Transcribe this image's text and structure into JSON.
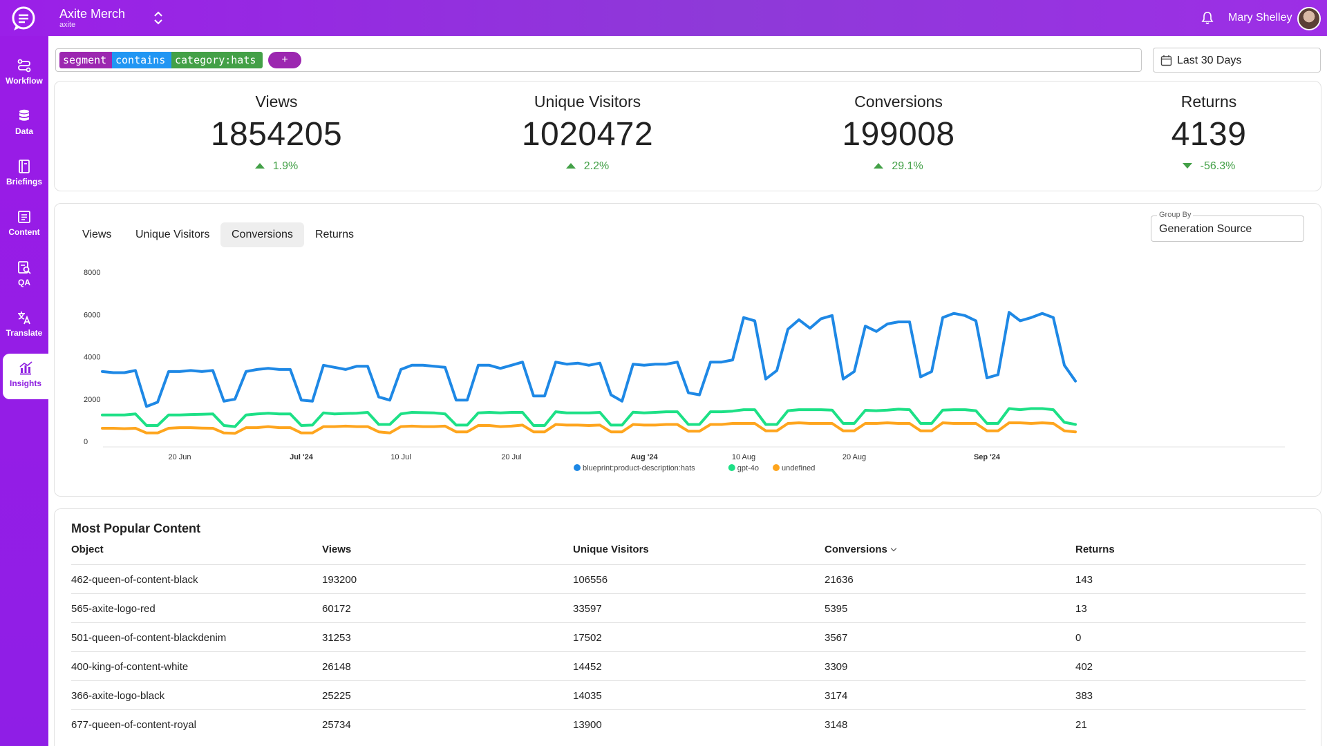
{
  "header": {
    "org_name": "Axite Merch",
    "org_sub": "axite",
    "user_name": "Mary Shelley"
  },
  "sidebar": {
    "items": [
      {
        "label": "Workflow",
        "icon": "workflow-icon"
      },
      {
        "label": "Data",
        "icon": "database-icon"
      },
      {
        "label": "Briefings",
        "icon": "briefings-icon"
      },
      {
        "label": "Content",
        "icon": "content-icon"
      },
      {
        "label": "QA",
        "icon": "qa-icon"
      },
      {
        "label": "Translate",
        "icon": "translate-icon"
      },
      {
        "label": "Insights",
        "icon": "insights-icon",
        "active": true
      }
    ]
  },
  "filter": {
    "tokens": [
      "segment",
      "contains",
      "category:hats"
    ],
    "add_label": "+",
    "date_range": "Last 30 Days"
  },
  "kpis": [
    {
      "title": "Views",
      "value": "1854205",
      "change": "1.9%",
      "direction": "up"
    },
    {
      "title": "Unique Visitors",
      "value": "1020472",
      "change": "2.2%",
      "direction": "up"
    },
    {
      "title": "Conversions",
      "value": "199008",
      "change": "29.1%",
      "direction": "up"
    },
    {
      "title": "Returns",
      "value": "4139",
      "change": "-56.3%",
      "direction": "down"
    }
  ],
  "chart_tabs": {
    "tabs": [
      "Views",
      "Unique Visitors",
      "Conversions",
      "Returns"
    ],
    "active": "Conversions"
  },
  "group_by": {
    "label": "Group By",
    "value": "Generation Source"
  },
  "chart_data": {
    "type": "line",
    "ylim": [
      0,
      8000
    ],
    "yticks": [
      "8000",
      "6000",
      "4000",
      "2000",
      "0"
    ],
    "ytick_values": [
      8000,
      6000,
      4000,
      2000,
      0
    ],
    "x_start": "2024-06-13",
    "xticks": [
      {
        "label": "20 Jun",
        "date": "2024-06-20",
        "bold": false
      },
      {
        "label": "Jul '24",
        "date": "2024-07-01",
        "bold": true
      },
      {
        "label": "10 Jul",
        "date": "2024-07-10",
        "bold": false
      },
      {
        "label": "20 Jul",
        "date": "2024-07-20",
        "bold": false
      },
      {
        "label": "Aug '24",
        "date": "2024-08-01",
        "bold": true
      },
      {
        "label": "10 Aug",
        "date": "2024-08-10",
        "bold": false
      },
      {
        "label": "20 Aug",
        "date": "2024-08-20",
        "bold": false
      },
      {
        "label": "Sep '24",
        "date": "2024-09-01",
        "bold": true
      }
    ],
    "legend_position": "bottom-center",
    "series": [
      {
        "name": "blueprint:product-description:hats",
        "color": "#1e88e5",
        "values": [
          3300,
          3250,
          3250,
          3350,
          1650,
          1850,
          3300,
          3300,
          3350,
          3300,
          3350,
          1900,
          2000,
          3300,
          3400,
          3450,
          3400,
          3400,
          1950,
          1900,
          3600,
          3500,
          3400,
          3550,
          3550,
          2100,
          1950,
          3400,
          3600,
          3600,
          3550,
          3500,
          1950,
          1950,
          3600,
          3600,
          3450,
          3600,
          3750,
          2150,
          2150,
          3750,
          3650,
          3700,
          3600,
          3700,
          2200,
          1900,
          3650,
          3600,
          3650,
          3650,
          3750,
          2300,
          2200,
          3750,
          3750,
          3850,
          5850,
          5700,
          2950,
          3350,
          5300,
          5750,
          5350,
          5800,
          5950,
          2950,
          3300,
          5450,
          5200,
          5550,
          5650,
          5650,
          3050,
          3300,
          5850,
          6050,
          5950,
          5700,
          3000,
          3150,
          6100,
          5700,
          5850,
          6050,
          5850,
          3600,
          2850
        ]
      },
      {
        "name": "gpt-4o",
        "color": "#1de086",
        "values": [
          1250,
          1250,
          1250,
          1300,
          750,
          750,
          1250,
          1250,
          1270,
          1280,
          1300,
          750,
          700,
          1250,
          1300,
          1330,
          1300,
          1300,
          750,
          770,
          1350,
          1300,
          1320,
          1330,
          1370,
          800,
          800,
          1300,
          1370,
          1360,
          1350,
          1300,
          770,
          770,
          1350,
          1370,
          1350,
          1370,
          1370,
          750,
          750,
          1400,
          1350,
          1350,
          1350,
          1370,
          770,
          770,
          1380,
          1350,
          1370,
          1400,
          1400,
          800,
          800,
          1400,
          1400,
          1430,
          1500,
          1500,
          800,
          800,
          1450,
          1500,
          1500,
          1500,
          1480,
          850,
          850,
          1470,
          1450,
          1480,
          1520,
          1500,
          850,
          850,
          1480,
          1500,
          1500,
          1450,
          850,
          850,
          1550,
          1500,
          1550,
          1550,
          1500,
          900,
          800
        ]
      },
      {
        "name": "undefined",
        "color": "#fea51e",
        "values": [
          620,
          620,
          600,
          620,
          400,
          400,
          620,
          650,
          650,
          630,
          620,
          400,
          380,
          650,
          650,
          700,
          650,
          650,
          400,
          400,
          700,
          700,
          720,
          700,
          700,
          450,
          400,
          700,
          720,
          700,
          700,
          720,
          450,
          450,
          750,
          750,
          700,
          720,
          770,
          450,
          450,
          800,
          770,
          770,
          750,
          770,
          450,
          450,
          800,
          770,
          770,
          800,
          800,
          480,
          480,
          800,
          800,
          850,
          850,
          850,
          500,
          500,
          850,
          880,
          850,
          850,
          850,
          500,
          500,
          850,
          850,
          880,
          850,
          850,
          500,
          500,
          880,
          850,
          850,
          850,
          500,
          500,
          880,
          880,
          850,
          880,
          850,
          500,
          450
        ]
      }
    ]
  },
  "table": {
    "title": "Most Popular Content",
    "headers": [
      "Object",
      "Views",
      "Unique Visitors",
      "Conversions",
      "Returns"
    ],
    "sorted_by": "Conversions",
    "rows": [
      [
        "462-queen-of-content-black",
        "193200",
        "106556",
        "21636",
        "143"
      ],
      [
        "565-axite-logo-red",
        "60172",
        "33597",
        "5395",
        "13"
      ],
      [
        "501-queen-of-content-blackdenim",
        "31253",
        "17502",
        "3567",
        "0"
      ],
      [
        "400-king-of-content-white",
        "26148",
        "14452",
        "3309",
        "402"
      ],
      [
        "366-axite-logo-black",
        "25225",
        "14035",
        "3174",
        "383"
      ],
      [
        "677-queen-of-content-royal",
        "25734",
        "13900",
        "3148",
        "21"
      ]
    ]
  }
}
